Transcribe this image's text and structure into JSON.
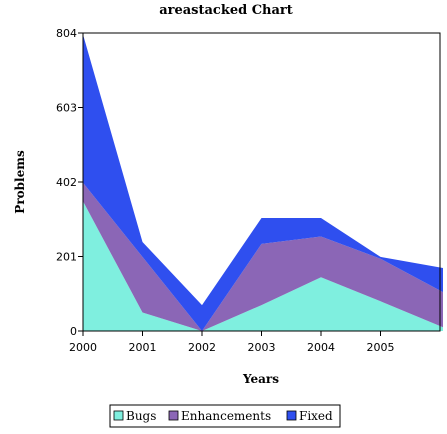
{
  "chart_data": {
    "type": "area",
    "stacked": true,
    "title": "areastacked Chart",
    "xlabel": "Years",
    "ylabel": "Problems",
    "x_ticks": [
      "2000",
      "2001",
      "2002",
      "2003",
      "2004",
      "2005"
    ],
    "x_range": [
      0,
      6.05
    ],
    "x": [
      0,
      1,
      2,
      3,
      4,
      5,
      6.05
    ],
    "y_ticks": [
      "0",
      "201",
      "402",
      "603",
      "804"
    ],
    "ylim": [
      0,
      804
    ],
    "grid": false,
    "legend_position": "bottom",
    "series": [
      {
        "name": "Bugs",
        "color": "#7FEFDF",
        "values": [
          350,
          50,
          0,
          70,
          145,
          80,
          10
        ]
      },
      {
        "name": "Enhancements",
        "color": "#8B66B6",
        "values": [
          50,
          150,
          0,
          165,
          110,
          115,
          95
        ]
      },
      {
        "name": "Fixed",
        "color": "#2F4FEF",
        "values": [
          400,
          40,
          70,
          70,
          50,
          5,
          65
        ]
      }
    ]
  }
}
